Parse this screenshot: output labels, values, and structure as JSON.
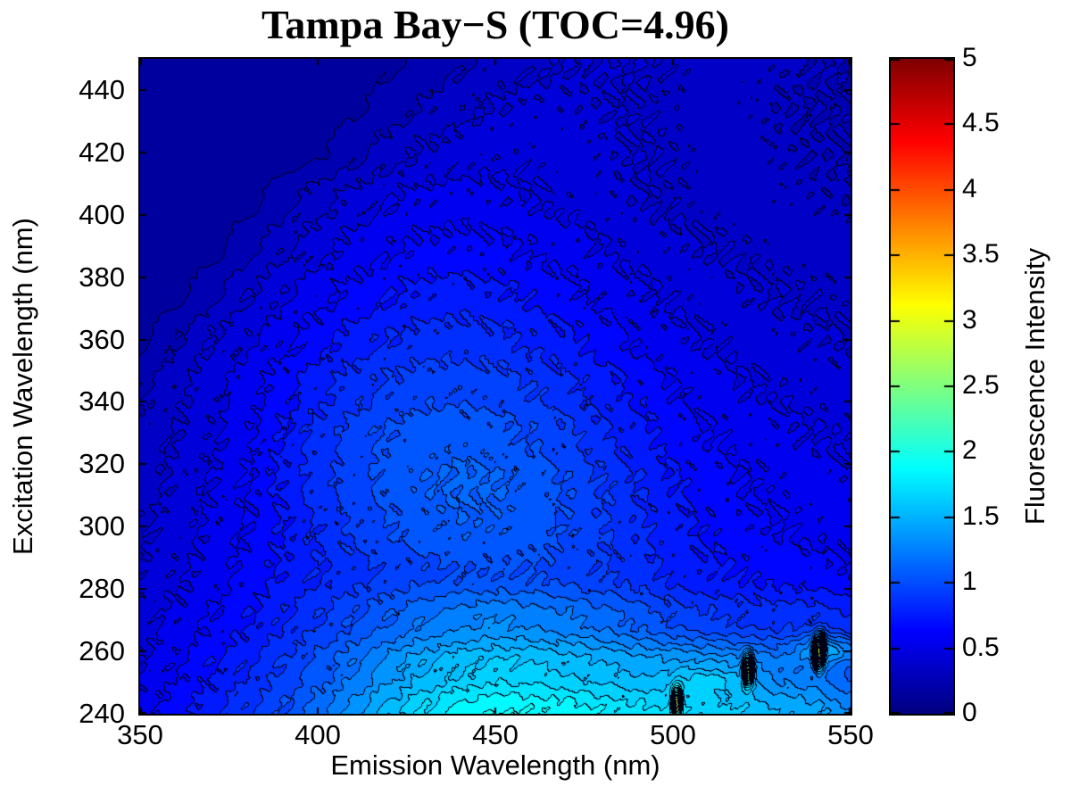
{
  "chart_data": {
    "type": "heatmap",
    "subtype": "filled-contour-EEM",
    "title": "Tampa Bay−S (TOC=4.96)",
    "xlabel": "Emission Wavelength (nm)",
    "ylabel": "Excitation Wavelength (nm)",
    "colorbar_label": "Fluorescence Intensity",
    "xlim": [
      350,
      550
    ],
    "ylim": [
      240,
      450
    ],
    "zlim": [
      0,
      5
    ],
    "contour_interval": 0.1,
    "grid": false,
    "x_ticks": [
      350,
      400,
      450,
      500,
      550
    ],
    "y_ticks": [
      240,
      260,
      280,
      300,
      320,
      340,
      360,
      380,
      400,
      420,
      440
    ],
    "colorbar_ticks": [
      "0",
      "0.5",
      "1",
      "1.5",
      "2",
      "2.5",
      "3",
      "3.5",
      "4",
      "4.5",
      "5"
    ],
    "colormap": {
      "name": "jet",
      "positions": [
        0,
        0.125,
        0.375,
        0.625,
        0.875,
        1
      ],
      "stops": [
        "#000080",
        "#0000FF",
        "#00FFFF",
        "#FFFF00",
        "#FF0000",
        "#800000"
      ]
    },
    "contour_line_color": "#000014",
    "emission_nm": [
      350,
      360,
      370,
      380,
      390,
      400,
      410,
      420,
      430,
      440,
      450,
      460,
      470,
      480,
      490,
      500,
      510,
      520,
      530,
      540,
      550
    ],
    "excitation_nm": [
      240,
      255,
      270,
      285,
      300,
      315,
      330,
      345,
      360,
      375,
      390,
      405,
      420,
      435,
      450
    ],
    "intensity": [
      [
        0.55,
        0.65,
        0.76,
        0.88,
        1.0,
        1.16,
        1.34,
        1.54,
        1.72,
        1.84,
        1.9,
        1.9,
        1.86,
        1.8,
        1.74,
        1.7,
        1.66,
        1.6,
        1.5,
        1.44,
        1.3
      ],
      [
        0.5,
        0.59,
        0.69,
        0.79,
        0.91,
        1.04,
        1.19,
        1.35,
        1.49,
        1.58,
        1.63,
        1.62,
        1.58,
        1.52,
        1.47,
        1.43,
        1.4,
        1.35,
        1.22,
        1.18,
        1.05
      ],
      [
        0.45,
        0.53,
        0.61,
        0.69,
        0.79,
        0.89,
        1.0,
        1.1,
        1.2,
        1.27,
        1.3,
        1.28,
        1.23,
        1.16,
        1.07,
        0.98,
        0.92,
        0.88,
        0.86,
        0.88,
        0.8
      ],
      [
        0.41,
        0.48,
        0.55,
        0.63,
        0.71,
        0.79,
        0.86,
        0.92,
        0.97,
        1.0,
        1.01,
        1.0,
        0.96,
        0.91,
        0.84,
        0.77,
        0.72,
        0.69,
        0.66,
        0.64,
        0.61
      ],
      [
        0.38,
        0.45,
        0.52,
        0.6,
        0.7,
        0.81,
        0.92,
        1.0,
        1.06,
        1.09,
        1.08,
        1.05,
        0.99,
        0.91,
        0.82,
        0.74,
        0.68,
        0.63,
        0.6,
        0.57,
        0.55
      ],
      [
        0.35,
        0.42,
        0.5,
        0.6,
        0.72,
        0.85,
        0.96,
        1.04,
        1.09,
        1.12,
        1.11,
        1.06,
        0.99,
        0.9,
        0.8,
        0.71,
        0.65,
        0.6,
        0.57,
        0.55,
        0.52
      ],
      [
        0.32,
        0.4,
        0.48,
        0.58,
        0.7,
        0.83,
        0.94,
        1.01,
        1.05,
        1.06,
        1.04,
        0.99,
        0.92,
        0.82,
        0.73,
        0.66,
        0.6,
        0.56,
        0.53,
        0.5,
        0.48
      ],
      [
        0.28,
        0.37,
        0.46,
        0.55,
        0.65,
        0.76,
        0.85,
        0.92,
        0.96,
        0.97,
        0.95,
        0.9,
        0.83,
        0.75,
        0.67,
        0.6,
        0.55,
        0.51,
        0.48,
        0.46,
        0.44
      ],
      [
        0.18,
        0.29,
        0.4,
        0.48,
        0.57,
        0.66,
        0.74,
        0.8,
        0.84,
        0.85,
        0.83,
        0.78,
        0.72,
        0.65,
        0.58,
        0.53,
        0.49,
        0.46,
        0.44,
        0.42,
        0.4
      ],
      [
        0.13,
        0.17,
        0.27,
        0.39,
        0.48,
        0.56,
        0.63,
        0.69,
        0.73,
        0.74,
        0.72,
        0.68,
        0.63,
        0.57,
        0.52,
        0.48,
        0.45,
        0.42,
        0.4,
        0.38,
        0.37
      ],
      [
        0.13,
        0.13,
        0.16,
        0.26,
        0.37,
        0.46,
        0.53,
        0.58,
        0.62,
        0.63,
        0.62,
        0.59,
        0.55,
        0.5,
        0.46,
        0.43,
        0.4,
        0.38,
        0.36,
        0.35,
        0.34
      ],
      [
        0.13,
        0.13,
        0.14,
        0.16,
        0.25,
        0.35,
        0.44,
        0.5,
        0.53,
        0.54,
        0.53,
        0.5,
        0.47,
        0.44,
        0.41,
        0.38,
        0.36,
        0.34,
        0.33,
        0.32,
        0.31
      ],
      [
        0.13,
        0.13,
        0.135,
        0.14,
        0.15,
        0.19,
        0.27,
        0.35,
        0.41,
        0.45,
        0.47,
        0.47,
        0.45,
        0.43,
        0.4,
        0.38,
        0.36,
        0.34,
        0.32,
        0.31,
        0.3
      ],
      [
        0.13,
        0.13,
        0.13,
        0.135,
        0.14,
        0.15,
        0.18,
        0.24,
        0.31,
        0.37,
        0.41,
        0.43,
        0.43,
        0.41,
        0.39,
        0.37,
        0.35,
        0.33,
        0.31,
        0.3,
        0.29
      ],
      [
        0.13,
        0.13,
        0.13,
        0.13,
        0.135,
        0.14,
        0.15,
        0.18,
        0.22,
        0.28,
        0.33,
        0.37,
        0.4,
        0.41,
        0.4,
        0.38,
        0.36,
        0.34,
        0.32,
        0.31,
        0.3
      ]
    ],
    "scatter_spikes": [
      {
        "em": 501,
        "exc": 244,
        "amp": 1.15,
        "sigma_em": 1.3,
        "sigma_exc": 4.5
      },
      {
        "em": 521,
        "exc": 254,
        "amp": 1.35,
        "sigma_em": 1.3,
        "sigma_exc": 4.5
      },
      {
        "em": 541,
        "exc": 260,
        "amp": 1.5,
        "sigma_em": 1.4,
        "sigma_exc": 5.0
      }
    ],
    "local_maxima_wedges": [
      {
        "em": 510,
        "exc": 251,
        "amp": 0.22,
        "sigma_em": 11,
        "sigma_exc": 4.0
      },
      {
        "em": 544,
        "exc": 261,
        "amp": 0.4,
        "sigma_em": 9,
        "sigma_exc": 4.5
      }
    ]
  }
}
